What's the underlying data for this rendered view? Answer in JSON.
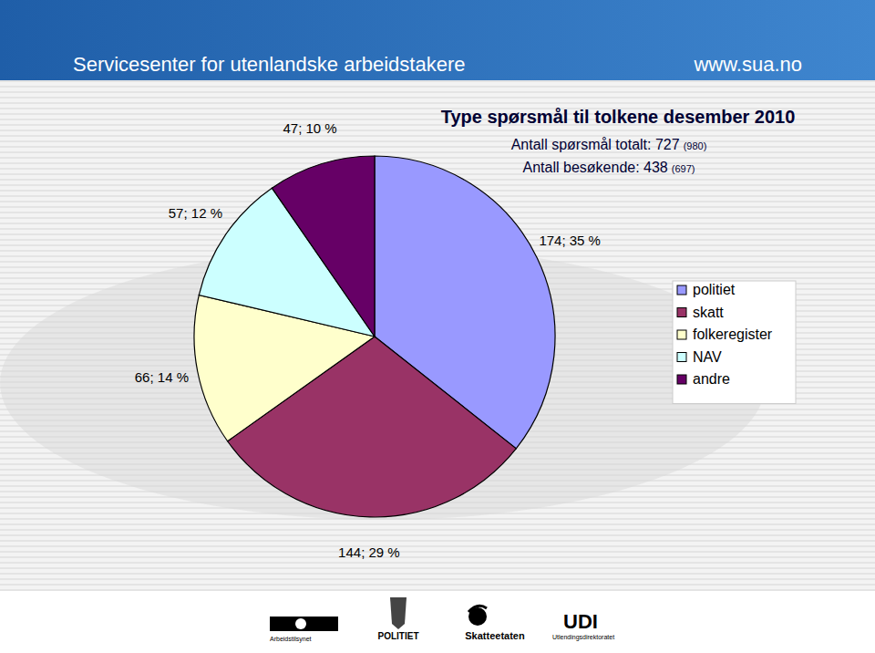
{
  "header": {
    "title": "Servicesenter for utenlandske arbeidstakere",
    "url": "www.sua.no"
  },
  "chart_data": {
    "type": "pie",
    "title": "Type spørsmål til tolkene desember 2010",
    "subtitle": [
      {
        "text": "Antall spørsmål totalt: 727",
        "note": "(980)"
      },
      {
        "text": "Antall besøkende: 438",
        "note": "(697)"
      }
    ],
    "categories": [
      "politiet",
      "skatt",
      "folkeregister",
      "NAV",
      "andre"
    ],
    "values": [
      174,
      144,
      66,
      57,
      47
    ],
    "value_labels": [
      "174; 35 %",
      "144; 29 %",
      "66; 14 %",
      "57; 12 %",
      "47; 10 %"
    ],
    "data_labels": true,
    "colors": [
      "#9999ff",
      "#993366",
      "#ffffcc",
      "#ccffff",
      "#660066"
    ],
    "legend": "right"
  },
  "footer": {
    "logos": [
      "Arbeidstilsynet",
      "POLITIET",
      "Skatteetaten",
      "UDI",
      "Utlendingsdirektoratet"
    ]
  }
}
